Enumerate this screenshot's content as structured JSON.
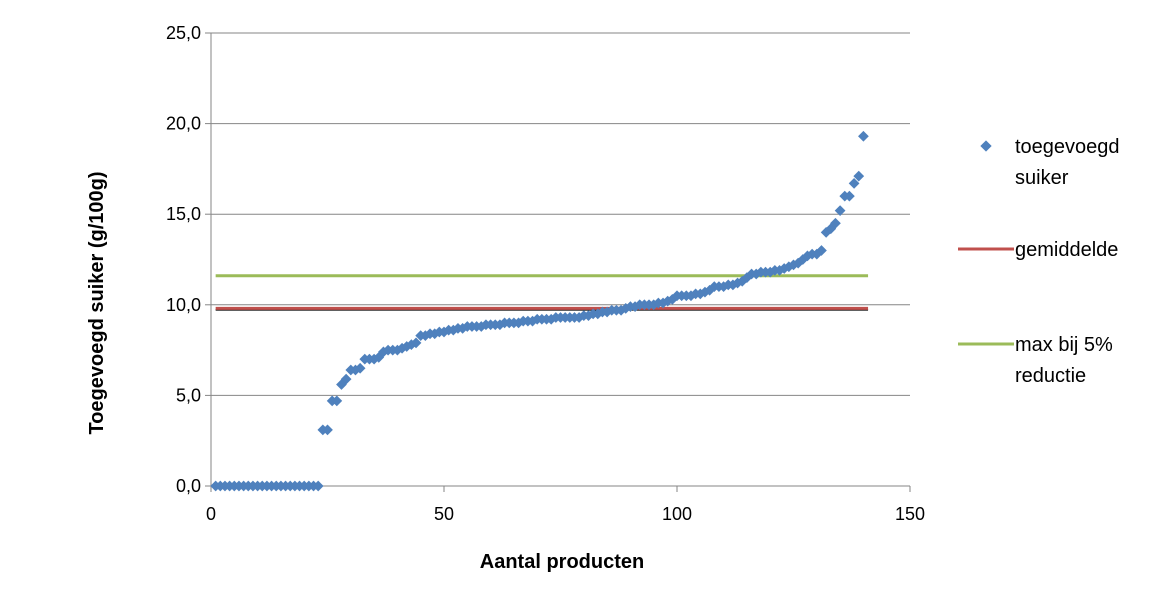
{
  "chart_data": {
    "type": "scatter",
    "xlabel": "Aantal producten",
    "ylabel": "Toegevoegd suiker (g/100g)",
    "xlim": [
      0,
      150
    ],
    "ylim": [
      0,
      25
    ],
    "x_ticks": [
      0,
      50,
      100,
      150
    ],
    "y_ticks": [
      0,
      5,
      10,
      15,
      20,
      25
    ],
    "x_tick_labels": [
      "0",
      "50",
      "100",
      "150"
    ],
    "y_tick_labels": [
      "0,0",
      "5,0",
      "10,0",
      "15,0",
      "20,0",
      "25,0"
    ],
    "grid": "horizontal",
    "legend_position": "right",
    "series": [
      {
        "name": "toegevoegd suiker",
        "type": "scatter",
        "color": "#4f81bd",
        "y": [
          0,
          0,
          0,
          0,
          0,
          0,
          0,
          0,
          0,
          0,
          0,
          0,
          0,
          0,
          0,
          0,
          0,
          0,
          0,
          0,
          0,
          0,
          0,
          3.1,
          3.1,
          4.7,
          4.7,
          5.6,
          5.9,
          6.4,
          6.4,
          6.5,
          7.0,
          7.0,
          7.0,
          7.1,
          7.4,
          7.5,
          7.5,
          7.5,
          7.6,
          7.7,
          7.8,
          7.9,
          8.3,
          8.3,
          8.4,
          8.4,
          8.5,
          8.5,
          8.6,
          8.6,
          8.7,
          8.7,
          8.8,
          8.8,
          8.8,
          8.8,
          8.9,
          8.9,
          8.9,
          8.9,
          9.0,
          9.0,
          9.0,
          9.0,
          9.1,
          9.1,
          9.1,
          9.2,
          9.2,
          9.2,
          9.2,
          9.3,
          9.3,
          9.3,
          9.3,
          9.3,
          9.3,
          9.4,
          9.4,
          9.5,
          9.5,
          9.6,
          9.6,
          9.7,
          9.7,
          9.7,
          9.8,
          9.9,
          9.9,
          10.0,
          10.0,
          10.0,
          10.0,
          10.1,
          10.1,
          10.2,
          10.3,
          10.5,
          10.5,
          10.5,
          10.5,
          10.6,
          10.6,
          10.7,
          10.8,
          11.0,
          11.0,
          11.0,
          11.1,
          11.1,
          11.2,
          11.3,
          11.5,
          11.7,
          11.7,
          11.8,
          11.8,
          11.8,
          11.9,
          11.9,
          12.0,
          12.1,
          12.2,
          12.3,
          12.5,
          12.7,
          12.8,
          12.8,
          13.0,
          14.0,
          14.2,
          14.5,
          15.2,
          16.0,
          16.0,
          16.7,
          17.1,
          19.3
        ]
      },
      {
        "name": "gemiddelde",
        "type": "line",
        "color": "#c0504d",
        "x": [
          1,
          141
        ],
        "y": [
          9.8,
          9.8
        ]
      },
      {
        "name": "max bij 5% reductie",
        "type": "line",
        "color": "#9bbb59",
        "x": [
          1,
          141
        ],
        "y": [
          11.6,
          11.6
        ]
      }
    ]
  }
}
